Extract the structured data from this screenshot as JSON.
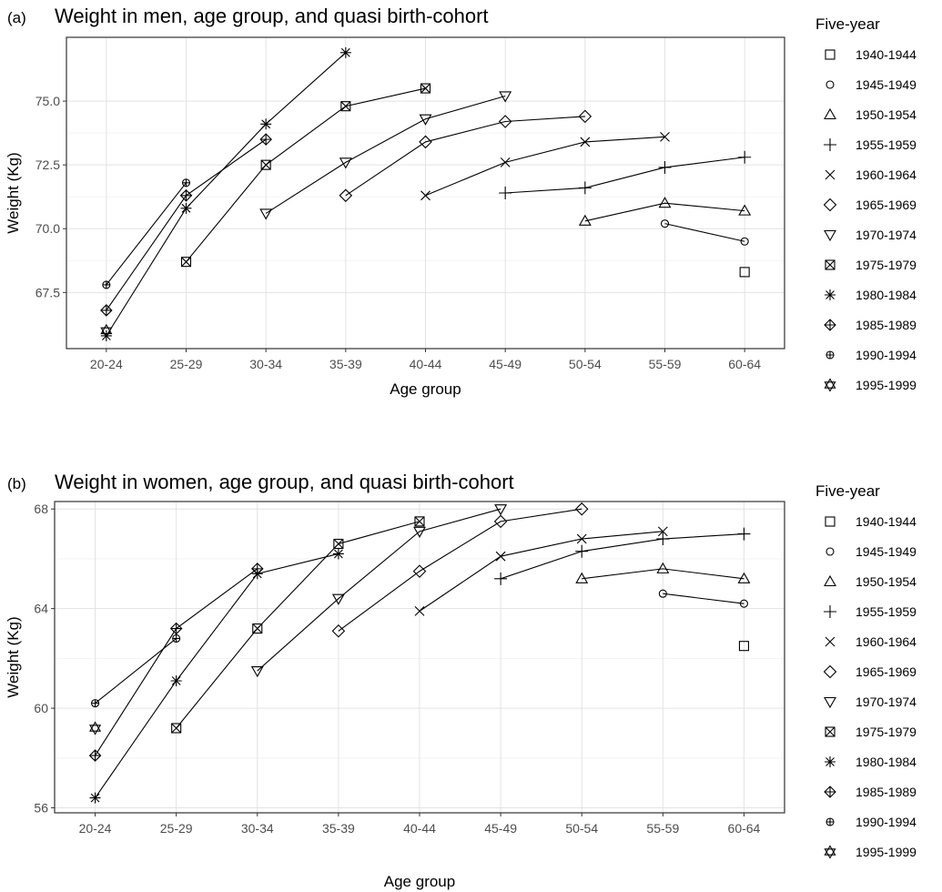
{
  "chart_data": [
    {
      "type": "line",
      "panel_label": "(a)",
      "title": "Weight in men, age group, and quasi birth-cohort",
      "xlabel": "Age group",
      "ylabel": "Weight (Kg)",
      "categories": [
        "20-24",
        "25-29",
        "30-34",
        "35-39",
        "40-44",
        "45-49",
        "50-54",
        "55-59",
        "60-64"
      ],
      "ylim": [
        65.3,
        77.5
      ],
      "yticks": [
        67.5,
        70.0,
        72.5,
        75.0
      ],
      "ytick_labels": [
        "67.5",
        "70.0",
        "72.5",
        "75.0"
      ],
      "grid": true,
      "legend_title": "Five-year",
      "legend_position": "right",
      "series": [
        {
          "name": "1940-1944",
          "shape": "square",
          "values": [
            null,
            null,
            null,
            null,
            null,
            null,
            null,
            null,
            68.3
          ]
        },
        {
          "name": "1945-1949",
          "shape": "circle",
          "values": [
            null,
            null,
            null,
            null,
            null,
            null,
            null,
            70.2,
            69.5
          ]
        },
        {
          "name": "1950-1954",
          "shape": "triangle-up",
          "values": [
            null,
            null,
            null,
            null,
            null,
            null,
            70.3,
            71.0,
            70.7
          ]
        },
        {
          "name": "1955-1959",
          "shape": "plus",
          "values": [
            null,
            null,
            null,
            null,
            null,
            71.4,
            71.6,
            72.4,
            72.8
          ]
        },
        {
          "name": "1960-1964",
          "shape": "cross",
          "values": [
            null,
            null,
            null,
            null,
            71.3,
            72.6,
            73.4,
            73.6,
            null
          ]
        },
        {
          "name": "1965-1969",
          "shape": "diamond",
          "values": [
            null,
            null,
            null,
            71.3,
            73.4,
            74.2,
            74.4,
            null,
            null
          ]
        },
        {
          "name": "1970-1974",
          "shape": "triangle-down",
          "values": [
            null,
            null,
            70.6,
            72.6,
            74.3,
            75.2,
            null,
            null,
            null
          ]
        },
        {
          "name": "1975-1979",
          "shape": "square-x",
          "values": [
            null,
            68.7,
            72.5,
            74.8,
            75.5,
            null,
            null,
            null,
            null
          ]
        },
        {
          "name": "1980-1984",
          "shape": "asterisk",
          "values": [
            65.8,
            70.8,
            74.1,
            76.9,
            null,
            null,
            null,
            null,
            null
          ]
        },
        {
          "name": "1985-1989",
          "shape": "diamond-plus",
          "values": [
            66.8,
            71.3,
            73.5,
            null,
            null,
            null,
            null,
            null,
            null
          ]
        },
        {
          "name": "1990-1994",
          "shape": "circle-plus",
          "values": [
            67.8,
            71.8,
            null,
            null,
            null,
            null,
            null,
            null,
            null
          ]
        },
        {
          "name": "1995-1999",
          "shape": "star-david",
          "values": [
            66.0,
            null,
            null,
            null,
            null,
            null,
            null,
            null,
            null
          ]
        }
      ]
    },
    {
      "type": "line",
      "panel_label": "(b)",
      "title": "Weight in women, age group, and quasi birth-cohort",
      "xlabel": "Age group",
      "ylabel": "Weight (Kg)",
      "categories": [
        "20-24",
        "25-29",
        "30-34",
        "35-39",
        "40-44",
        "45-49",
        "50-54",
        "55-59",
        "60-64"
      ],
      "ylim": [
        55.8,
        68.3
      ],
      "yticks": [
        56,
        60,
        64,
        68
      ],
      "ytick_labels": [
        "56",
        "60",
        "64",
        "68"
      ],
      "grid": true,
      "legend_title": "Five-year",
      "legend_position": "right",
      "series": [
        {
          "name": "1940-1944",
          "shape": "square",
          "values": [
            null,
            null,
            null,
            null,
            null,
            null,
            null,
            null,
            62.5
          ]
        },
        {
          "name": "1945-1949",
          "shape": "circle",
          "values": [
            null,
            null,
            null,
            null,
            null,
            null,
            null,
            64.6,
            64.2
          ]
        },
        {
          "name": "1950-1954",
          "shape": "triangle-up",
          "values": [
            null,
            null,
            null,
            null,
            null,
            null,
            65.2,
            65.6,
            65.2
          ]
        },
        {
          "name": "1955-1959",
          "shape": "plus",
          "values": [
            null,
            null,
            null,
            null,
            null,
            65.2,
            66.3,
            66.8,
            67.0
          ]
        },
        {
          "name": "1960-1964",
          "shape": "cross",
          "values": [
            null,
            null,
            null,
            null,
            63.9,
            66.1,
            66.8,
            67.1,
            null
          ]
        },
        {
          "name": "1965-1969",
          "shape": "diamond",
          "values": [
            null,
            null,
            null,
            63.1,
            65.5,
            67.5,
            68.0,
            null,
            null
          ]
        },
        {
          "name": "1970-1974",
          "shape": "triangle-down",
          "values": [
            null,
            null,
            61.5,
            64.4,
            67.1,
            68.0,
            null,
            null,
            null
          ]
        },
        {
          "name": "1975-1979",
          "shape": "square-x",
          "values": [
            null,
            59.2,
            63.2,
            66.6,
            67.5,
            null,
            null,
            null,
            null
          ]
        },
        {
          "name": "1980-1984",
          "shape": "asterisk",
          "values": [
            56.4,
            61.1,
            65.4,
            66.2,
            null,
            null,
            null,
            null,
            null
          ]
        },
        {
          "name": "1985-1989",
          "shape": "diamond-plus",
          "values": [
            58.1,
            63.2,
            65.6,
            null,
            null,
            null,
            null,
            null,
            null
          ]
        },
        {
          "name": "1990-1994",
          "shape": "circle-plus",
          "values": [
            60.2,
            62.8,
            null,
            null,
            null,
            null,
            null,
            null,
            null
          ]
        },
        {
          "name": "1995-1999",
          "shape": "star-david",
          "values": [
            59.2,
            null,
            null,
            null,
            null,
            null,
            null,
            null,
            null
          ]
        }
      ]
    }
  ]
}
